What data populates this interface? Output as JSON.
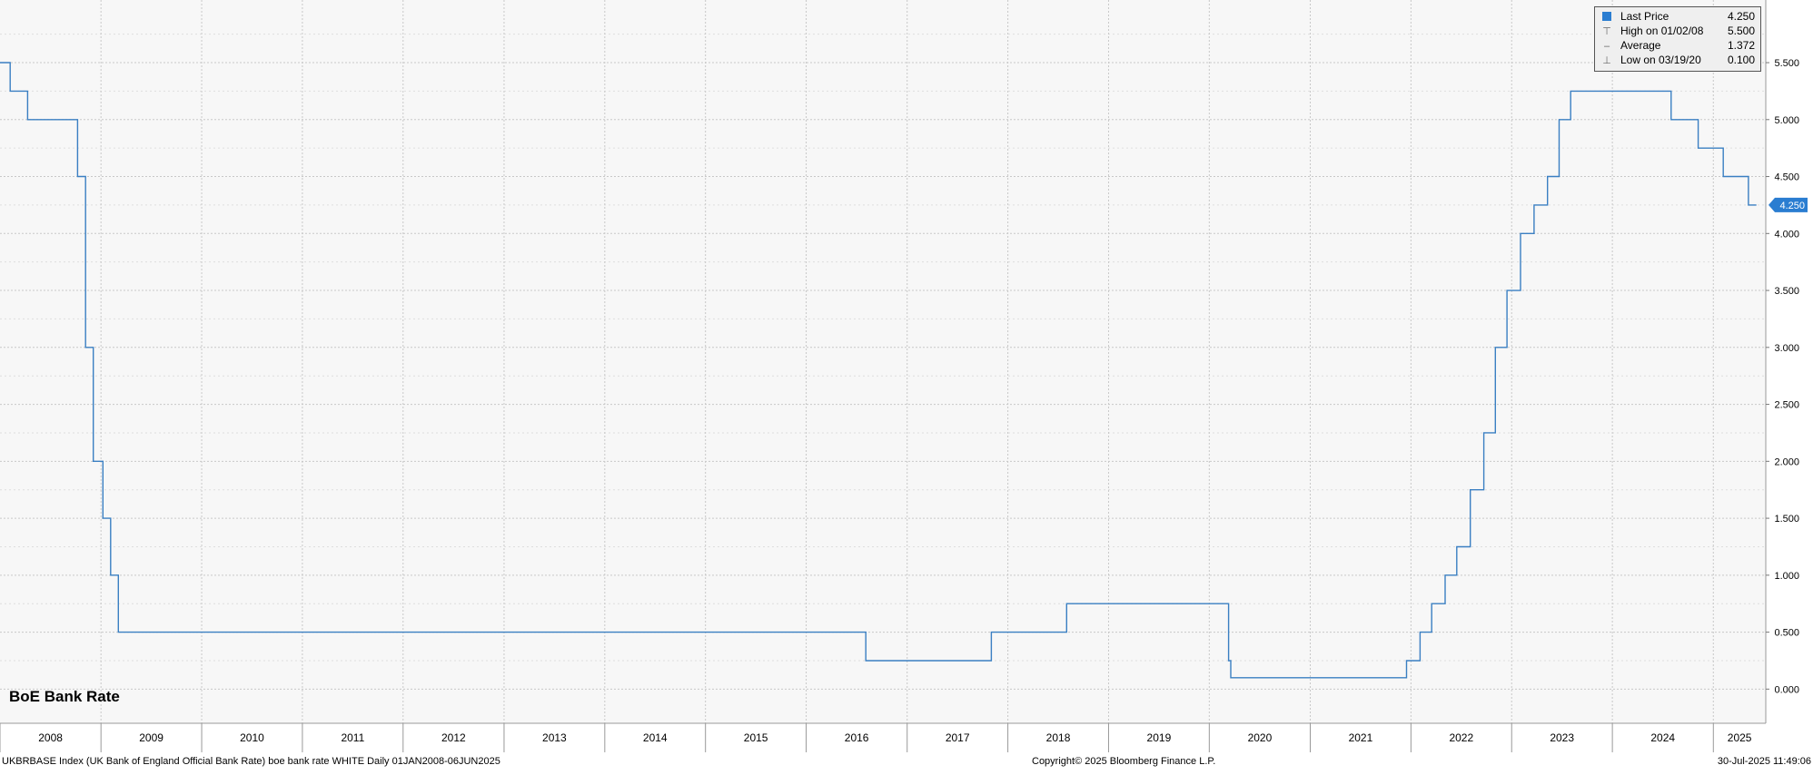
{
  "chart_data": {
    "type": "line",
    "step": true,
    "title": "BoE Bank Rate",
    "series": [
      {
        "name": "Last Price",
        "color": "#3a7fc2",
        "points": [
          [
            "2008-01-01",
            5.5
          ],
          [
            "2008-02-07",
            5.25
          ],
          [
            "2008-04-10",
            5.0
          ],
          [
            "2008-10-08",
            4.5
          ],
          [
            "2008-11-06",
            3.0
          ],
          [
            "2008-12-04",
            2.0
          ],
          [
            "2009-01-08",
            1.5
          ],
          [
            "2009-02-05",
            1.0
          ],
          [
            "2009-03-05",
            0.5
          ],
          [
            "2016-08-04",
            0.25
          ],
          [
            "2017-11-02",
            0.5
          ],
          [
            "2018-08-02",
            0.75
          ],
          [
            "2020-03-11",
            0.25
          ],
          [
            "2020-03-19",
            0.1
          ],
          [
            "2021-12-16",
            0.25
          ],
          [
            "2022-02-03",
            0.5
          ],
          [
            "2022-03-17",
            0.75
          ],
          [
            "2022-05-05",
            1.0
          ],
          [
            "2022-06-16",
            1.25
          ],
          [
            "2022-08-04",
            1.75
          ],
          [
            "2022-09-22",
            2.25
          ],
          [
            "2022-11-03",
            3.0
          ],
          [
            "2022-12-15",
            3.5
          ],
          [
            "2023-02-02",
            4.0
          ],
          [
            "2023-03-23",
            4.25
          ],
          [
            "2023-05-11",
            4.5
          ],
          [
            "2023-06-22",
            5.0
          ],
          [
            "2023-08-03",
            5.25
          ],
          [
            "2024-08-01",
            5.0
          ],
          [
            "2024-11-07",
            4.75
          ],
          [
            "2025-02-06",
            4.5
          ],
          [
            "2025-05-08",
            4.25
          ],
          [
            "2025-06-06",
            4.25
          ]
        ]
      }
    ],
    "x_range": [
      "2008-01-01",
      "2025-07-10"
    ],
    "y_range": [
      -0.3,
      6.05
    ],
    "y_ticks": [
      "0.000",
      "0.500",
      "1.000",
      "1.500",
      "2.000",
      "2.500",
      "3.000",
      "3.500",
      "4.000",
      "4.500",
      "5.000",
      "5.500"
    ],
    "x_ticks": [
      "2008",
      "2009",
      "2010",
      "2011",
      "2012",
      "2013",
      "2014",
      "2015",
      "2016",
      "2017",
      "2018",
      "2019",
      "2020",
      "2021",
      "2022",
      "2023",
      "2024",
      "2025"
    ],
    "last_value_label": "4.250",
    "grid": true,
    "legend_position": "top-right",
    "legend": [
      {
        "icon": "square-swatch-icon",
        "label": "Last Price",
        "value": "4.250",
        "color": "#2a7dd1"
      },
      {
        "icon": "high-marker-icon",
        "label": "High on 01/02/08",
        "value": "5.500"
      },
      {
        "icon": "average-marker-icon",
        "label": "Average",
        "value": "1.372"
      },
      {
        "icon": "low-marker-icon",
        "label": "Low on 03/19/20",
        "value": "0.100"
      }
    ]
  },
  "footer": {
    "left": "UKBRBASE Index (UK Bank of England Official Bank Rate) boe bank rate WHITE  Daily 01JAN2008-06JUN2025",
    "center": "Copyright© 2025 Bloomberg Finance L.P.",
    "right": "30-Jul-2025 11:49:06"
  },
  "colors": {
    "plot_background": "#f7f7f7",
    "grid": "#c8c8c8",
    "series": "#3a7fc2",
    "last_price_tag": "#2a7dd1"
  }
}
